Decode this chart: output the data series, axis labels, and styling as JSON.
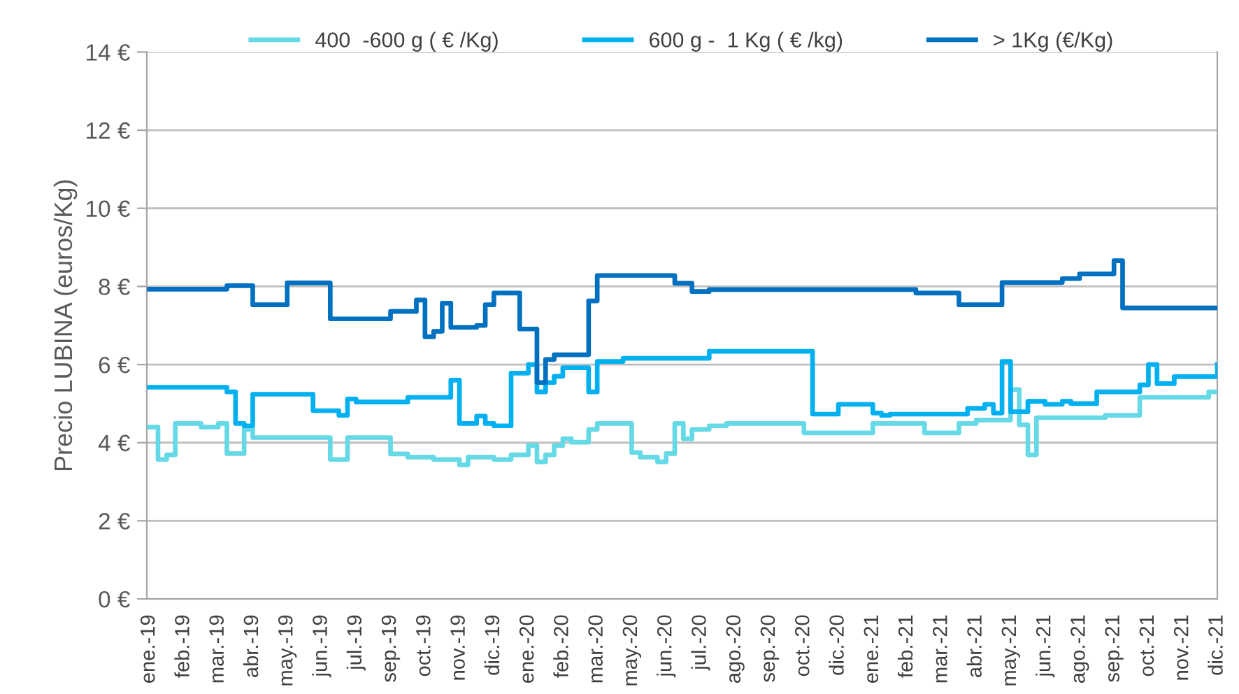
{
  "chart_data": {
    "type": "step",
    "ylabel": "Precio LUBINA (euros/Kg)",
    "categories": [
      "ene.-19",
      null,
      null,
      null,
      "feb.-19",
      null,
      null,
      null,
      "mar.-19",
      null,
      null,
      null,
      "abr.-19",
      null,
      null,
      null,
      "may.-19",
      null,
      null,
      null,
      "jun.-19",
      null,
      null,
      null,
      "jul.-19",
      null,
      null,
      null,
      "sep.-19",
      null,
      null,
      null,
      "oct.-19",
      null,
      null,
      null,
      "nov.-19",
      null,
      null,
      null,
      "dic.-19",
      null,
      null,
      null,
      "ene.-20",
      null,
      null,
      null,
      "feb.-20",
      null,
      null,
      null,
      "mar.-20",
      null,
      null,
      null,
      "may.-20",
      null,
      null,
      null,
      "jun.-20",
      null,
      null,
      null,
      "jul.-20",
      null,
      null,
      null,
      "ago.-20",
      null,
      null,
      null,
      "sep.-20",
      null,
      null,
      null,
      "oct.-20",
      null,
      null,
      null,
      "dic.-20",
      null,
      null,
      null,
      "ene.-21",
      null,
      null,
      null,
      "feb.-21",
      null,
      null,
      null,
      "mar.-21",
      null,
      null,
      null,
      "abr.-21",
      null,
      null,
      null,
      "may.-21",
      null,
      null,
      null,
      "jun.-21",
      null,
      null,
      null,
      "ago.-21",
      null,
      null,
      null,
      "sep.-21",
      null,
      null,
      null,
      "oct.-21",
      null,
      null,
      null,
      "nov.-21",
      null,
      null,
      null,
      "dic.-21"
    ],
    "ylim": [
      0,
      14
    ],
    "yticks": [
      {
        "value": 0,
        "label": "0 €"
      },
      {
        "value": 2,
        "label": "2 €"
      },
      {
        "value": 4,
        "label": "4 €"
      },
      {
        "value": 6,
        "label": "6 €"
      },
      {
        "value": 8,
        "label": "8 €"
      },
      {
        "value": 10,
        "label": "10 €"
      },
      {
        "value": 12,
        "label": "12 €"
      },
      {
        "value": 14,
        "label": "14 €"
      }
    ],
    "grid": "y",
    "legend": "top",
    "marker": "none",
    "line_style": "solid",
    "series": [
      {
        "name": "400  -600 g ( € /Kg)",
        "color": "#66d9e6",
        "values": [
          4.4,
          3.57,
          3.69,
          4.49,
          4.49,
          4.49,
          4.4,
          4.4,
          4.49,
          3.72,
          3.72,
          4.34,
          4.13,
          4.13,
          4.13,
          4.13,
          4.13,
          4.13,
          4.13,
          4.13,
          4.13,
          3.57,
          3.57,
          4.13,
          4.13,
          4.13,
          4.13,
          4.13,
          3.71,
          3.71,
          3.63,
          3.63,
          3.63,
          3.57,
          3.57,
          3.57,
          3.43,
          3.63,
          3.63,
          3.63,
          3.57,
          3.57,
          3.69,
          3.69,
          3.93,
          3.51,
          3.69,
          3.93,
          4.1,
          4.01,
          4.01,
          4.34,
          4.49,
          4.49,
          4.49,
          4.49,
          3.75,
          3.63,
          3.63,
          3.51,
          3.72,
          4.49,
          4.1,
          4.34,
          4.34,
          4.43,
          4.43,
          4.49,
          4.49,
          4.49,
          4.49,
          4.49,
          4.49,
          4.49,
          4.49,
          4.49,
          4.25,
          4.25,
          4.25,
          4.25,
          4.25,
          4.25,
          4.25,
          4.25,
          4.49,
          4.49,
          4.49,
          4.49,
          4.49,
          4.49,
          4.25,
          4.25,
          4.25,
          4.25,
          4.49,
          4.49,
          4.58,
          4.58,
          4.58,
          4.58,
          5.36,
          4.46,
          3.69,
          4.64,
          4.64,
          4.64,
          4.64,
          4.64,
          4.64,
          4.64,
          4.64,
          4.7,
          4.7,
          4.7,
          4.7,
          5.16,
          5.16,
          5.16,
          5.16,
          5.16,
          5.16,
          5.16,
          5.16,
          5.3,
          5.3
        ]
      },
      {
        "name": "600 g -  1 Kg ( € /kg)",
        "color": "#00b0f0",
        "values": [
          5.42,
          5.42,
          5.42,
          5.42,
          5.42,
          5.42,
          5.42,
          5.42,
          5.42,
          5.3,
          4.49,
          4.43,
          5.24,
          5.24,
          5.24,
          5.24,
          5.24,
          5.24,
          5.24,
          4.82,
          4.82,
          4.82,
          4.7,
          5.12,
          5.04,
          5.04,
          5.04,
          5.04,
          5.04,
          5.04,
          5.16,
          5.16,
          5.16,
          5.16,
          5.16,
          5.6,
          4.49,
          4.49,
          4.68,
          4.49,
          4.43,
          4.43,
          5.78,
          5.78,
          6.0,
          5.3,
          5.54,
          5.7,
          5.92,
          5.92,
          5.92,
          5.3,
          6.08,
          6.08,
          6.08,
          6.16,
          6.16,
          6.16,
          6.16,
          6.16,
          6.16,
          6.16,
          6.16,
          6.16,
          6.16,
          6.34,
          6.34,
          6.34,
          6.34,
          6.34,
          6.34,
          6.34,
          6.34,
          6.34,
          6.34,
          6.34,
          6.34,
          4.73,
          4.73,
          4.73,
          4.98,
          4.98,
          4.98,
          4.98,
          4.76,
          4.7,
          4.73,
          4.73,
          4.73,
          4.73,
          4.73,
          4.73,
          4.73,
          4.73,
          4.73,
          4.88,
          4.88,
          4.98,
          4.76,
          6.08,
          4.79,
          4.79,
          5.06,
          5.06,
          4.98,
          4.98,
          5.06,
          5.0,
          5.0,
          5.0,
          5.3,
          5.3,
          5.3,
          5.3,
          5.3,
          5.48,
          6.0,
          5.51,
          5.51,
          5.69,
          5.69,
          5.69,
          5.69,
          5.69,
          6.0
        ]
      },
      {
        "name": "> 1Kg (€/Kg)",
        "color": "#0070c0",
        "values": [
          7.93,
          7.93,
          7.93,
          7.93,
          7.93,
          7.93,
          7.93,
          7.93,
          7.93,
          8.02,
          8.02,
          8.02,
          7.53,
          7.53,
          7.53,
          7.53,
          8.09,
          8.09,
          8.09,
          8.09,
          8.09,
          7.17,
          7.17,
          7.17,
          7.17,
          7.17,
          7.17,
          7.17,
          7.36,
          7.36,
          7.36,
          7.65,
          6.71,
          6.85,
          7.57,
          6.95,
          6.95,
          6.95,
          7.0,
          7.53,
          7.83,
          7.83,
          7.83,
          6.91,
          6.91,
          5.54,
          6.13,
          6.25,
          6.25,
          6.25,
          6.25,
          7.63,
          8.28,
          8.28,
          8.28,
          8.28,
          8.28,
          8.28,
          8.28,
          8.28,
          8.28,
          8.08,
          8.08,
          7.87,
          7.87,
          7.92,
          7.92,
          7.92,
          7.92,
          7.92,
          7.92,
          7.92,
          7.92,
          7.92,
          7.92,
          7.92,
          7.92,
          7.92,
          7.92,
          7.92,
          7.92,
          7.92,
          7.92,
          7.92,
          7.92,
          7.92,
          7.92,
          7.92,
          7.92,
          7.83,
          7.83,
          7.83,
          7.83,
          7.83,
          7.53,
          7.53,
          7.53,
          7.53,
          7.53,
          8.1,
          8.1,
          8.1,
          8.1,
          8.1,
          8.1,
          8.1,
          8.2,
          8.2,
          8.32,
          8.32,
          8.32,
          8.32,
          8.66,
          7.45,
          7.45,
          7.45,
          7.45,
          7.45,
          7.45,
          7.45,
          7.45,
          7.45,
          7.45,
          7.45,
          7.45
        ]
      }
    ]
  }
}
